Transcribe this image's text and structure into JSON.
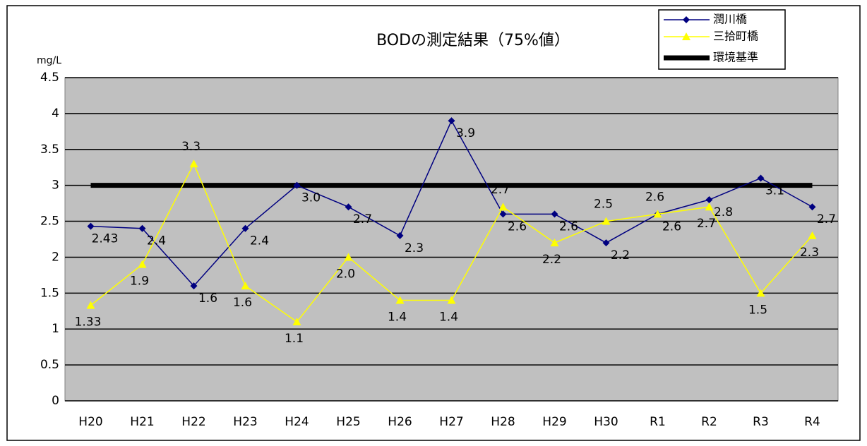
{
  "chart_data": {
    "type": "line",
    "title": "BODの測定結果（75%値）",
    "y_label": "mg/L",
    "categories": [
      "H20",
      "H21",
      "H22",
      "H23",
      "H24",
      "H25",
      "H26",
      "H27",
      "H28",
      "H29",
      "H30",
      "R1",
      "R2",
      "R3",
      "R4"
    ],
    "series": [
      {
        "name": "潤川橋",
        "color": "#000080",
        "marker": "diamond",
        "values": [
          2.43,
          2.4,
          1.6,
          2.4,
          3.0,
          2.7,
          2.3,
          3.9,
          2.6,
          2.6,
          2.2,
          2.6,
          2.8,
          3.1,
          2.7
        ],
        "value_labels": [
          "2.43",
          "2.4",
          "1.6",
          "2.4",
          "3.0",
          "2.7",
          "2.3",
          "3.9",
          "2.6",
          "2.6",
          "2.2",
          "2.6",
          "2.8",
          "3.1",
          "2.7"
        ]
      },
      {
        "name": "三拾町橋",
        "color": "#ffff00",
        "marker": "triangle",
        "values": [
          1.33,
          1.9,
          3.3,
          1.6,
          1.1,
          2.0,
          1.4,
          1.4,
          2.7,
          2.2,
          2.5,
          2.6,
          2.7,
          1.5,
          2.3
        ],
        "value_labels": [
          "1.33",
          "1.9",
          "3.3",
          "1.6",
          "1.1",
          "2.0",
          "1.4",
          "1.4",
          "2.7",
          "2.2",
          "2.5",
          "2.6",
          "2.7",
          "1.5",
          "2.3"
        ]
      }
    ],
    "reference": {
      "name": "環境基準",
      "value": 3,
      "color": "#000000"
    },
    "ylim": [
      0,
      4.5
    ],
    "yticks": [
      0,
      0.5,
      1,
      1.5,
      2,
      2.5,
      3,
      3.5,
      4,
      4.5
    ],
    "grid": true,
    "legend": "top-right"
  }
}
